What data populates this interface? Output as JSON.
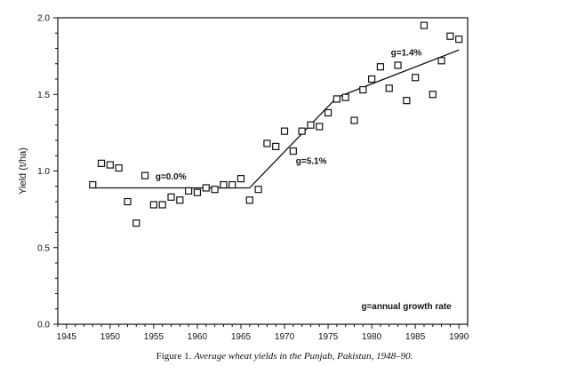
{
  "caption": {
    "prefix": "Figure 1.",
    "text": "Average wheat yields in the Punjab, Pakistan, 1948–90."
  },
  "chart_data": {
    "type": "scatter",
    "title": "",
    "xlabel": "",
    "ylabel": "Yield (t/ha)",
    "xlim": [
      1944,
      1991
    ],
    "ylim": [
      0.0,
      2.0
    ],
    "x_ticks": [
      1945,
      1950,
      1955,
      1960,
      1965,
      1970,
      1975,
      1980,
      1985,
      1990
    ],
    "y_ticks": [
      "0.0",
      "0.5",
      "1.0",
      "1.5",
      "2.0"
    ],
    "grid": false,
    "points": {
      "x": [
        1948,
        1949,
        1950,
        1951,
        1952,
        1953,
        1954,
        1955,
        1956,
        1957,
        1958,
        1959,
        1960,
        1961,
        1962,
        1963,
        1964,
        1965,
        1966,
        1967,
        1968,
        1969,
        1970,
        1971,
        1972,
        1973,
        1974,
        1975,
        1976,
        1977,
        1978,
        1979,
        1980,
        1981,
        1982,
        1983,
        1984,
        1985,
        1986,
        1987,
        1988,
        1989,
        1990
      ],
      "y": [
        0.91,
        1.05,
        1.04,
        1.02,
        0.8,
        0.66,
        0.97,
        0.78,
        0.78,
        0.83,
        0.81,
        0.87,
        0.86,
        0.89,
        0.88,
        0.91,
        0.91,
        0.95,
        0.81,
        0.88,
        1.18,
        1.16,
        1.26,
        1.13,
        1.26,
        1.3,
        1.29,
        1.38,
        1.47,
        1.48,
        1.33,
        1.53,
        1.6,
        1.68,
        1.54,
        1.69,
        1.46,
        1.61,
        1.95,
        1.5,
        1.72,
        1.88,
        1.86
      ]
    },
    "trend_line": {
      "x": [
        1948,
        1966,
        1976,
        1990
      ],
      "y": [
        0.89,
        0.89,
        1.48,
        1.79
      ]
    },
    "annotations": [
      {
        "text": "g=0.0%",
        "x": 1955.2,
        "y": 0.945
      },
      {
        "text": "g=5.1%",
        "x": 1971.3,
        "y": 1.045
      },
      {
        "text": "g=1.4%",
        "x": 1982.2,
        "y": 1.755
      },
      {
        "text": "g=annual growth rate",
        "x": 1978.8,
        "y": 0.1
      }
    ]
  }
}
